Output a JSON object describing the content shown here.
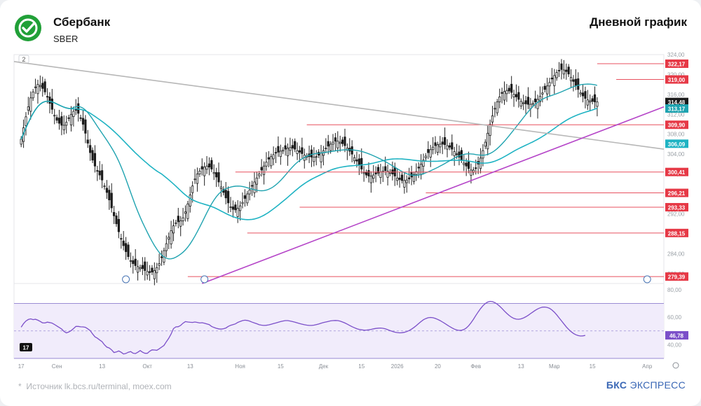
{
  "header": {
    "company": "Сбербанк",
    "ticker": "SBER",
    "chart_type": "Дневной график"
  },
  "footer": {
    "source": "Источник lk.bcs.ru/terminal, moex.com",
    "brand_bold": "БКС",
    "brand_light": "ЭКСПРЕСС"
  },
  "chart_data": [
    {
      "type": "candlestick",
      "price_axis": {
        "min": 278,
        "max": 324,
        "ticks": [
          324,
          320,
          316,
          312,
          308,
          304,
          300,
          296,
          292,
          288,
          284,
          280
        ]
      },
      "price_axis_labels": [
        "324,00",
        "320,00",
        "316,00",
        "312,00",
        "308,00",
        "304,00",
        "300,00",
        "296,00",
        "292,00",
        "288,00",
        "284,00",
        "280,00"
      ],
      "x_axis_labels": [
        "17",
        "Сен",
        "13",
        "Окт",
        "13",
        "Ноя",
        "15",
        "Дек",
        "15",
        "2026",
        "20",
        "Фев",
        "13",
        "Мар",
        "15",
        "Апр"
      ],
      "x_axis_label_index": [
        0,
        15,
        34,
        53,
        71,
        92,
        109,
        127,
        143,
        158,
        175,
        191,
        210,
        224,
        240,
        263
      ],
      "x_range": [
        -3,
        270
      ],
      "scale_button_label": "2",
      "levels": [
        {
          "value": 322.17,
          "label": "322,17",
          "start_index": 242
        },
        {
          "value": 319.0,
          "label": "319,00",
          "start_index": 250
        },
        {
          "value": 309.9,
          "label": "309,90",
          "start_index": 120
        },
        {
          "value": 300.41,
          "label": "300,41",
          "start_index": 90
        },
        {
          "value": 296.21,
          "label": "296,21",
          "start_index": 170
        },
        {
          "value": 293.33,
          "label": "293,33",
          "start_index": 117
        },
        {
          "value": 288.15,
          "label": "288,15",
          "start_index": 95
        },
        {
          "value": 279.39,
          "label": "279,39",
          "start_index": 70
        }
      ],
      "current_price": {
        "value": 314.48,
        "label": "314,48"
      },
      "ma_fast": {
        "value": 313.17,
        "label": "313,17",
        "color": "#1fa3b0"
      },
      "ma_slow": {
        "value": 306.09,
        "label": "306,09",
        "color": "#1fb3c3"
      },
      "downtrend_line": {
        "color": "#b7b7b7",
        "from": {
          "index": -3,
          "value": 322.6
        },
        "to": {
          "index": 270,
          "value": 305.0
        }
      },
      "uptrend_line": {
        "color": "#b545c8",
        "from": {
          "index": 76,
          "value": 278.0
        },
        "to": {
          "index": 270,
          "value": 313.5
        }
      },
      "ohlc_closes": [
        307.0,
        309.3,
        311.5,
        313.5,
        315.3,
        316.5,
        317.5,
        318.0,
        317.8,
        317.2,
        316.5,
        315.5,
        314.2,
        313.0,
        311.8,
        310.8,
        310.2,
        309.8,
        309.8,
        310.4,
        311.2,
        312.0,
        312.6,
        312.8,
        312.2,
        311.2,
        310.0,
        308.2,
        306.2,
        304.3,
        302.8,
        301.6,
        300.6,
        299.8,
        298.8,
        297.6,
        296.3,
        294.8,
        293.2,
        291.6,
        290.0,
        288.4,
        287.0,
        285.6,
        284.4,
        283.4,
        282.6,
        282.0,
        281.6,
        281.4,
        281.2,
        281.0,
        280.6,
        280.4,
        280.2,
        280.3,
        280.6,
        281.2,
        282.0,
        283.2,
        284.6,
        286.0,
        287.3,
        288.6,
        289.6,
        290.2,
        290.4,
        290.6,
        291.2,
        292.4,
        294.0,
        295.8,
        297.6,
        299.0,
        300.0,
        300.6,
        301.0,
        301.4,
        301.6,
        301.4,
        301.0,
        300.3,
        299.4,
        298.4,
        297.4,
        296.3,
        295.2,
        294.2,
        293.4,
        292.9,
        292.8,
        293.1,
        293.6,
        294.3,
        295.1,
        296.0,
        296.8,
        297.6,
        298.4,
        299.2,
        300.0,
        300.8,
        301.6,
        302.4,
        303.0,
        303.5,
        303.9,
        304.2,
        304.4,
        304.6,
        304.8,
        305.0,
        305.2,
        305.3,
        305.2,
        305.0,
        304.7,
        304.4,
        304.1,
        303.8,
        303.6,
        303.5,
        303.4,
        303.4,
        303.5,
        303.8,
        304.2,
        304.7,
        305.2,
        305.6,
        306.0,
        306.4,
        306.6,
        306.6,
        306.4,
        306.1,
        305.7,
        305.2,
        304.6,
        304.0,
        303.3,
        302.6,
        301.8,
        301.0,
        300.3,
        299.8,
        299.6,
        299.6,
        299.8,
        300.0,
        300.2,
        300.4,
        300.6,
        300.7,
        300.6,
        300.4,
        300.0,
        299.6,
        299.2,
        298.9,
        298.7,
        298.7,
        298.8,
        299.0,
        299.4,
        299.9,
        300.5,
        301.2,
        302.0,
        302.8,
        303.6,
        304.3,
        304.9,
        305.4,
        305.7,
        305.9,
        306.0,
        306.0,
        305.9,
        305.7,
        305.4,
        305.0,
        304.5,
        304.0,
        303.4,
        302.8,
        302.2,
        301.6,
        301.1,
        300.8,
        300.8,
        301.2,
        302.0,
        303.2,
        304.7,
        306.4,
        308.2,
        310.0,
        311.7,
        313.2,
        314.5,
        315.5,
        316.2,
        316.6,
        316.8,
        316.7,
        316.4,
        316.0,
        315.5,
        315.0,
        314.6,
        314.3,
        314.1,
        314.0,
        314.0,
        314.2,
        314.5,
        315.0,
        315.6,
        316.3,
        317.0,
        317.7,
        318.4,
        319.1,
        319.8,
        320.4,
        320.8,
        321.0,
        320.9,
        320.6,
        320.1,
        319.4,
        318.6,
        317.8,
        317.0,
        316.3,
        315.7,
        315.2,
        314.9,
        314.7,
        314.6,
        314.5,
        314.48
      ]
    },
    {
      "type": "line",
      "name": "RSI",
      "y_axis": {
        "min": 30,
        "max": 84,
        "ticks": [
          80,
          60,
          40
        ]
      },
      "y_axis_labels": [
        "80,00",
        "60,00",
        "40,00"
      ],
      "upper_band": 70,
      "lower_band": 30,
      "middle": 50,
      "current": {
        "value": 46.78,
        "label": "46,78"
      },
      "x_axis_labels": [
        "17",
        "Сен",
        "13",
        "Окт",
        "13",
        "Ноя",
        "15",
        "Дек",
        "15",
        "2026",
        "20",
        "Фев",
        "13",
        "Мар",
        "15",
        "Апр"
      ],
      "values": [
        52.7,
        55.3,
        57.2,
        58.3,
        58.8,
        58.2,
        58.5,
        57.8,
        56.9,
        55.9,
        55.8,
        56.4,
        56.1,
        55.7,
        54.7,
        53.6,
        52.5,
        51.4,
        49.6,
        48.6,
        49.2,
        50.2,
        51.7,
        53.3,
        53.3,
        53.0,
        52.9,
        52.6,
        51.5,
        50.2,
        47.8,
        45.7,
        44.7,
        43.4,
        42.2,
        39.9,
        38.2,
        37.6,
        36.2,
        34.3,
        34.7,
        35.4,
        34.5,
        33.2,
        33.6,
        34.5,
        35.0,
        33.8,
        33.5,
        34.5,
        35.7,
        34.5,
        33.7,
        33.7,
        35.2,
        36.2,
        36.1,
        35.9,
        37.0,
        38.2,
        39.4,
        42.1,
        44.6,
        47.8,
        51.7,
        52.9,
        53.1,
        54.0,
        55.6,
        56.8,
        56.5,
        56.3,
        56.2,
        56.5,
        56.2,
        55.8,
        56.0,
        55.6,
        55.1,
        54.6,
        53.3,
        52.5,
        51.9,
        51.5,
        51.3,
        51.6,
        52.1,
        53.3,
        54.1,
        54.6,
        55.1,
        56.2,
        56.9,
        57.5,
        57.8,
        57.6,
        57.1,
        56.4,
        55.8,
        55.2,
        54.5,
        54.2,
        54.0,
        54.1,
        54.4,
        54.8,
        55.3,
        55.8,
        56.3,
        56.8,
        57.2,
        57.5,
        57.5,
        57.2,
        56.8,
        56.4,
        55.9,
        55.3,
        54.9,
        54.5,
        54.2,
        54.0,
        54.0,
        54.2,
        54.6,
        55.0,
        55.6,
        56.1,
        56.5,
        56.9,
        57.3,
        57.5,
        57.6,
        57.5,
        57.1,
        56.5,
        55.8,
        54.9,
        54.0,
        53.1,
        52.3,
        51.6,
        51.1,
        50.8,
        50.6,
        50.6,
        50.8,
        51.1,
        51.5,
        51.8,
        52.0,
        52.1,
        51.9,
        51.5,
        50.9,
        50.2,
        49.6,
        49.1,
        48.8,
        48.6,
        48.7,
        49.0,
        49.5,
        50.3,
        51.3,
        52.5,
        53.9,
        55.4,
        56.8,
        58.1,
        59.0,
        59.6,
        59.8,
        59.6,
        59.1,
        58.4,
        57.5,
        56.5,
        55.4,
        54.3,
        53.2,
        52.2,
        51.3,
        50.7,
        50.4,
        50.5,
        51.0,
        52.1,
        53.8,
        56.0,
        58.5,
        61.2,
        63.8,
        66.2,
        68.3,
        69.9,
        71.0,
        71.5,
        71.3,
        70.6,
        69.5,
        68.0,
        66.3,
        64.5,
        62.8,
        61.3,
        60.0,
        59.1,
        58.6,
        58.5,
        58.8,
        59.4,
        60.3,
        61.4,
        62.6,
        63.8,
        65.0,
        66.0,
        66.8,
        67.3,
        67.4,
        67.1,
        66.4,
        65.2,
        63.6,
        61.7,
        59.5,
        57.3,
        55.1,
        53.0,
        51.1,
        49.5,
        48.2,
        47.2,
        46.6,
        46.3,
        46.4,
        46.78
      ]
    }
  ]
}
